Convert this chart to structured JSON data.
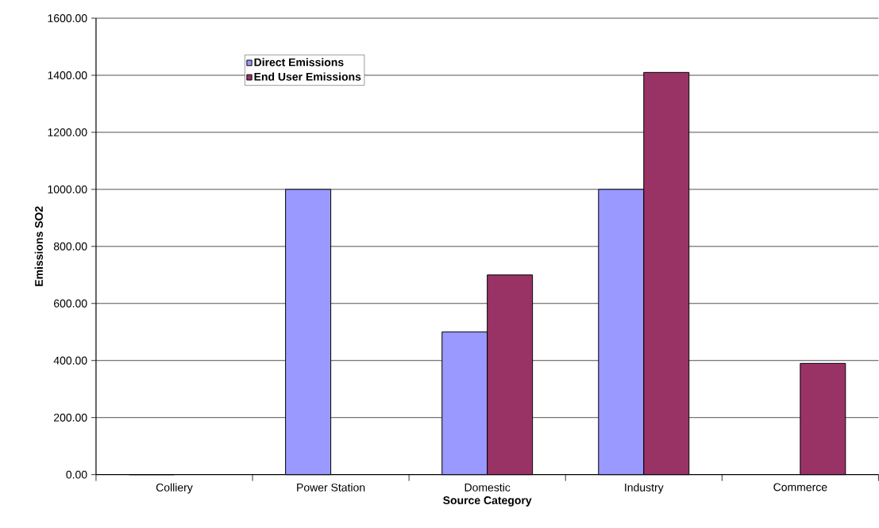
{
  "chart_data": {
    "type": "bar",
    "xlabel": "Source Category",
    "ylabel": "Emissions SO2",
    "categories": [
      "Colliery",
      "Power Station",
      "Domestic",
      "Industry",
      "Commerce"
    ],
    "series": [
      {
        "name": "Direct Emissions",
        "color": "#9999ff",
        "values": [
          0,
          1000,
          500,
          1000,
          null
        ]
      },
      {
        "name": "End User Emissions",
        "color": "#993366",
        "values": [
          null,
          null,
          700,
          1410,
          390
        ]
      }
    ],
    "ylim": [
      0,
      1600
    ],
    "yticks": [
      {
        "value": 0,
        "label": "0.00"
      },
      {
        "value": 200,
        "label": "200.00"
      },
      {
        "value": 400,
        "label": "400.00"
      },
      {
        "value": 600,
        "label": "600.00"
      },
      {
        "value": 800,
        "label": "800.00"
      },
      {
        "value": 1000,
        "label": "1000.00"
      },
      {
        "value": 1200,
        "label": "1200.00"
      },
      {
        "value": 1400,
        "label": "1400.00"
      },
      {
        "value": 1600,
        "label": "1600.00"
      }
    ],
    "grid": "y",
    "legend": "top left"
  }
}
